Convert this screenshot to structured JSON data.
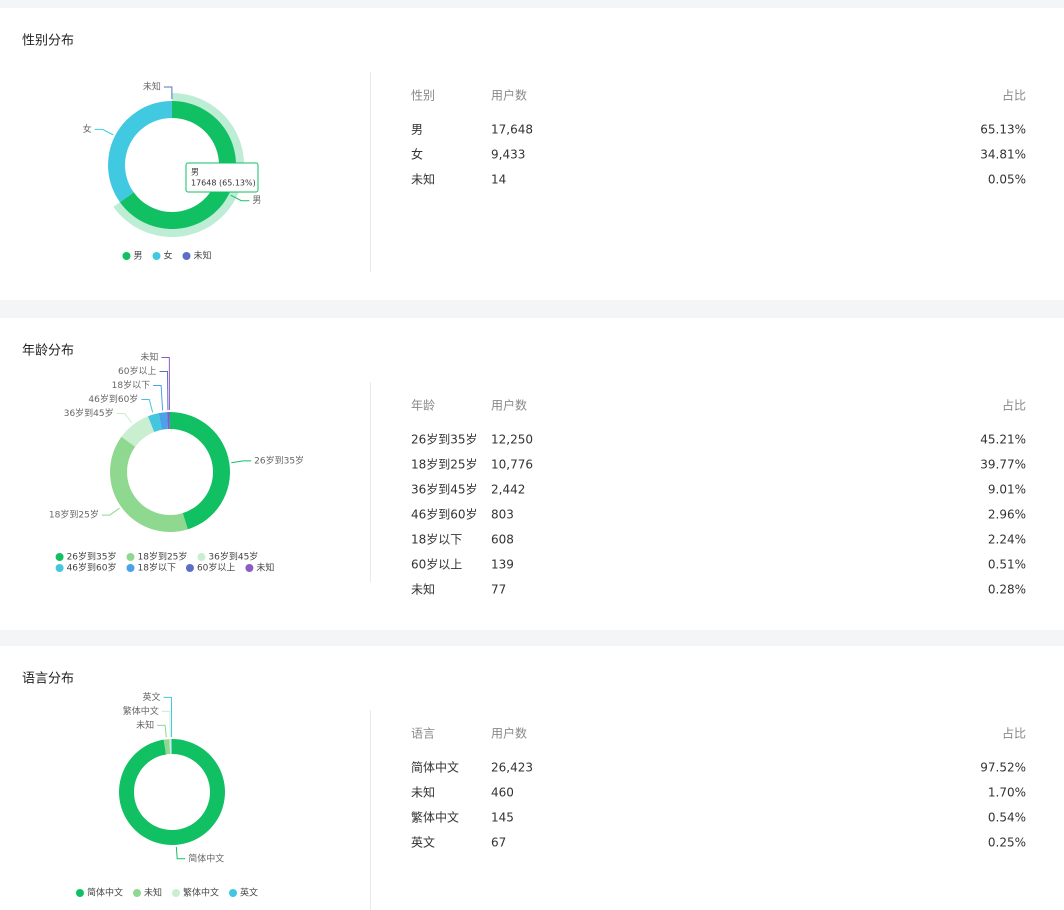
{
  "chart_data": [
    {
      "type": "pie",
      "categories": [
        "男",
        "女",
        "未知"
      ],
      "values": [
        65.13,
        34.81,
        0.05
      ],
      "colors": [
        "#12c064",
        "#42c9e2",
        "#5b6fc4"
      ],
      "tooltip": {
        "title": "男",
        "text": "17648 (65.13%)"
      }
    },
    {
      "type": "pie",
      "categories": [
        "26岁到35岁",
        "18岁到25岁",
        "36岁到45岁",
        "46岁到60岁",
        "18岁以下",
        "60岁以上",
        "未知"
      ],
      "values": [
        45.21,
        39.77,
        9.01,
        2.96,
        2.24,
        0.51,
        0.28
      ],
      "colors": [
        "#12c064",
        "#8fd88f",
        "#c9efd0",
        "#44c6e0",
        "#4aa3e8",
        "#5b6fc4",
        "#8e5bc4"
      ]
    },
    {
      "type": "pie",
      "categories": [
        "简体中文",
        "未知",
        "繁体中文",
        "英文"
      ],
      "values": [
        97.52,
        1.7,
        0.54,
        0.25
      ],
      "colors": [
        "#12c064",
        "#8fd88f",
        "#c9efd0",
        "#44c6e0"
      ]
    }
  ],
  "sections": [
    {
      "title": "性别分布",
      "table": {
        "headers": [
          "性别",
          "用户数",
          "占比"
        ],
        "rows": [
          [
            "男",
            "17,648",
            "65.13%"
          ],
          [
            "女",
            "9,433",
            "34.81%"
          ],
          [
            "未知",
            "14",
            "0.05%"
          ]
        ]
      }
    },
    {
      "title": "年龄分布",
      "table": {
        "headers": [
          "年龄",
          "用户数",
          "占比"
        ],
        "rows": [
          [
            "26岁到35岁",
            "12,250",
            "45.21%"
          ],
          [
            "18岁到25岁",
            "10,776",
            "39.77%"
          ],
          [
            "36岁到45岁",
            "2,442",
            "9.01%"
          ],
          [
            "46岁到60岁",
            "803",
            "2.96%"
          ],
          [
            "18岁以下",
            "608",
            "2.24%"
          ],
          [
            "60岁以上",
            "139",
            "0.51%"
          ],
          [
            "未知",
            "77",
            "0.28%"
          ]
        ]
      }
    },
    {
      "title": "语言分布",
      "table": {
        "headers": [
          "语言",
          "用户数",
          "占比"
        ],
        "rows": [
          [
            "简体中文",
            "26,423",
            "97.52%"
          ],
          [
            "未知",
            "460",
            "1.70%"
          ],
          [
            "繁体中文",
            "145",
            "0.54%"
          ],
          [
            "英文",
            "67",
            "0.25%"
          ]
        ]
      }
    }
  ]
}
